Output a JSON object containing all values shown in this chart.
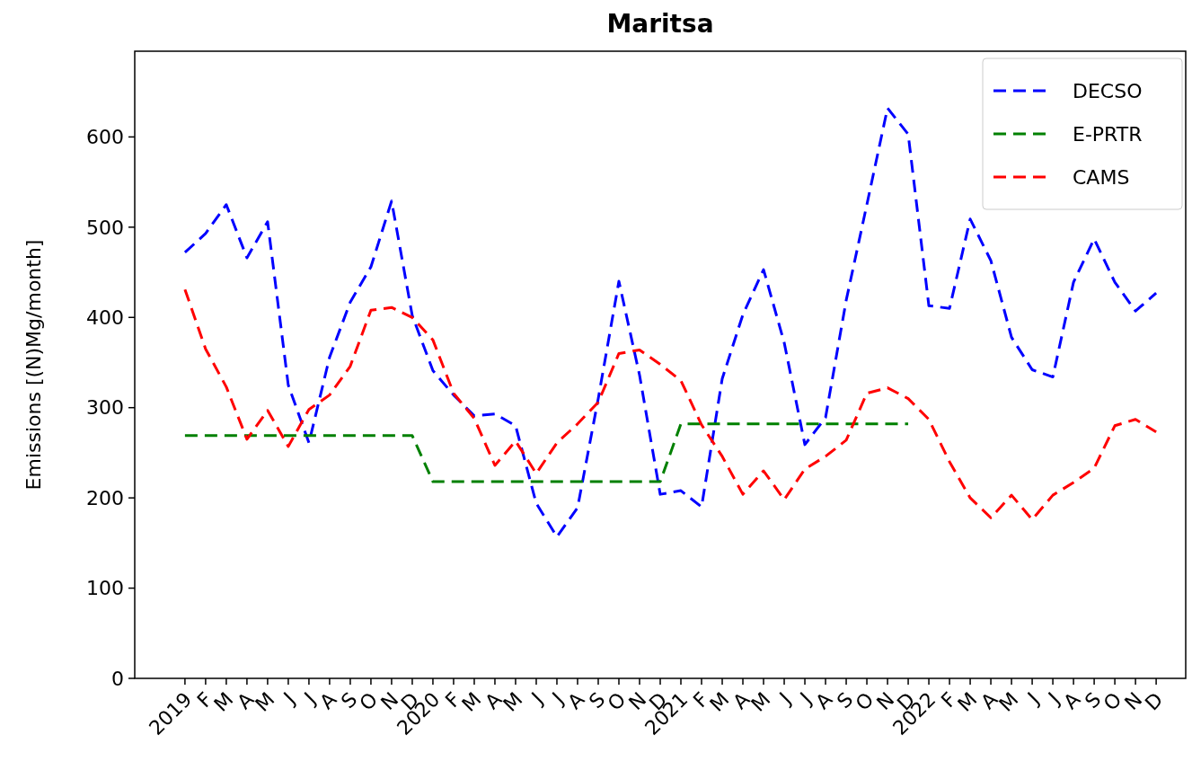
{
  "chart_data": {
    "type": "line",
    "title": "Maritsa",
    "ylabel": "Emissions [(N)Mg/month]",
    "categories": [
      "2019",
      "F",
      "M",
      "A",
      "M",
      "J",
      "J",
      "A",
      "S",
      "O",
      "N",
      "D",
      "2020",
      "F",
      "M",
      "A",
      "M",
      "J",
      "J",
      "A",
      "S",
      "O",
      "N",
      "D",
      "2021",
      "F",
      "M",
      "A",
      "M",
      "J",
      "J",
      "A",
      "S",
      "O",
      "N",
      "D",
      "2022",
      "F",
      "M",
      "A",
      "M",
      "J",
      "J",
      "A",
      "S",
      "O",
      "N",
      "D"
    ],
    "series": [
      {
        "name": "DECSO",
        "color": "#0000ff",
        "values": [
          472,
          493,
          525,
          466,
          506,
          325,
          261,
          356,
          417,
          456,
          529,
          402,
          341,
          314,
          291,
          293,
          280,
          194,
          157,
          189,
          310,
          440,
          336,
          204,
          208,
          190,
          332,
          403,
          453,
          372,
          259,
          289,
          419,
          525,
          632,
          603,
          413,
          410,
          509,
          463,
          378,
          342,
          334,
          439,
          487,
          439,
          407,
          427
        ]
      },
      {
        "name": "E-PRTR",
        "color": "#008000",
        "values": [
          269,
          269,
          269,
          269,
          269,
          269,
          269,
          269,
          269,
          269,
          269,
          269,
          218,
          218,
          218,
          218,
          218,
          218,
          218,
          218,
          218,
          218,
          218,
          218,
          282,
          282,
          282,
          282,
          282,
          282,
          282,
          282,
          282,
          282,
          282,
          282,
          null,
          null,
          null,
          null,
          null,
          null,
          null,
          null,
          null,
          null,
          null,
          null
        ]
      },
      {
        "name": "CAMS",
        "color": "#ff0000",
        "values": [
          431,
          365,
          323,
          265,
          297,
          257,
          298,
          314,
          346,
          408,
          411,
          400,
          375,
          316,
          288,
          236,
          263,
          227,
          261,
          282,
          306,
          360,
          364,
          348,
          330,
          281,
          246,
          204,
          230,
          198,
          232,
          246,
          264,
          316,
          322,
          310,
          287,
          240,
          200,
          178,
          203,
          176,
          203,
          217,
          233,
          280,
          287,
          273
        ]
      }
    ],
    "ylim": [
      0,
      695
    ],
    "yticks": [
      0,
      100,
      200,
      300,
      400,
      500,
      600
    ],
    "legend": "top right",
    "line_style": "dashed",
    "marker": "none",
    "grid": false
  }
}
